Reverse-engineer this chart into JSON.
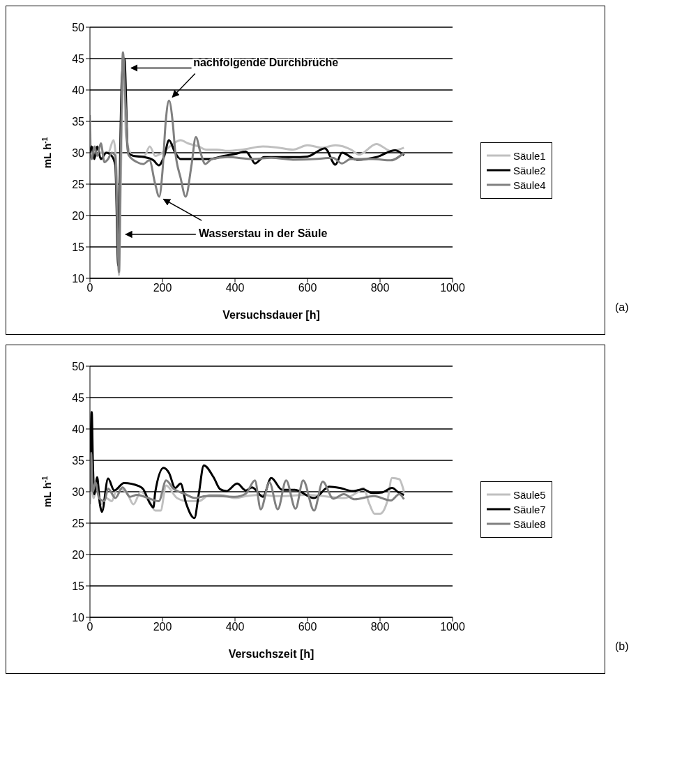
{
  "chart_data": [
    {
      "type": "line",
      "xlabel": "Versuchsdauer [h]",
      "ylabel": "mL h$^{-1}$",
      "xlim": [
        0,
        1000
      ],
      "xticks": [
        0,
        200,
        400,
        600,
        800,
        1000
      ],
      "ylim": [
        10,
        50
      ],
      "yticks": [
        10,
        15,
        20,
        25,
        30,
        35,
        40,
        45,
        50
      ],
      "grid": "y",
      "legend": "right",
      "marker": "none",
      "line_style": "solid",
      "annotations": [
        {
          "text": "nachfolgende Durchbrüche",
          "x": 218,
          "y": 38.3
        },
        {
          "text": "Wasserstau in der Säule",
          "x": 191,
          "y": 23
        },
        "(a)"
      ],
      "series": [
        {
          "name": "Säule1",
          "color": "#c0c0c0",
          "x": [
            0,
            5,
            15,
            30,
            50,
            65,
            75,
            80,
            85,
            92,
            100,
            120,
            150,
            165,
            180,
            200,
            220,
            250,
            270,
            300,
            320,
            350,
            380,
            420,
            477,
            520,
            560,
            600,
            640,
            677,
            720,
            742,
            790,
            830,
            866
          ],
          "values": [
            36,
            29,
            31,
            30,
            30,
            32,
            25,
            10.5,
            25,
            45,
            32,
            29.5,
            29.5,
            31,
            29.5,
            30,
            31,
            32,
            31.5,
            31,
            30.5,
            30.5,
            30.3,
            30.5,
            31,
            30.8,
            30.5,
            31.2,
            30.8,
            31.2,
            30.5,
            29.7,
            31.4,
            30.3,
            30.8
          ]
        },
        {
          "name": "Säule2",
          "color": "#000000",
          "x": [
            0,
            5,
            12,
            20,
            30,
            45,
            60,
            70,
            78,
            82,
            88,
            95,
            105,
            120,
            150,
            175,
            190,
            205,
            218,
            235,
            250,
            300,
            330,
            370,
            400,
            430,
            445,
            455,
            480,
            560,
            600,
            648,
            677,
            695,
            736,
            790,
            842,
            866
          ],
          "values": [
            30,
            31,
            29,
            31,
            29,
            30,
            29.5,
            28,
            12,
            25,
            42,
            45,
            30,
            29.5,
            29.3,
            28.8,
            28,
            29.5,
            32,
            30,
            29,
            29,
            29,
            29.5,
            29.8,
            30.2,
            29.1,
            28.3,
            29.3,
            29.3,
            29.4,
            30.7,
            28.1,
            30,
            28.9,
            29.3,
            30.4,
            29.6
          ]
        },
        {
          "name": "Säule4",
          "color": "#808080",
          "x": [
            0,
            5,
            12,
            20,
            30,
            40,
            50,
            60,
            70,
            75,
            80,
            85,
            91,
            98,
            106,
            130,
            147,
            164,
            180,
            191,
            200,
            209,
            218,
            228,
            235,
            250,
            264,
            280,
            292,
            305,
            318,
            336,
            380,
            450,
            500,
            560,
            620,
            670,
            695,
            719,
            780,
            830,
            866
          ],
          "values": [
            30,
            29,
            31,
            29.5,
            31.5,
            28.5,
            29,
            30,
            29.5,
            20,
            11,
            30,
            46,
            38,
            29.7,
            28.5,
            28.2,
            28.8,
            25,
            23,
            27,
            35,
            38.3,
            35,
            30.3,
            26,
            23,
            28,
            32.5,
            30,
            28.2,
            29,
            29.3,
            29,
            29.2,
            28.9,
            29,
            29.2,
            28.3,
            29,
            29,
            28.8,
            30
          ]
        }
      ]
    },
    {
      "type": "line",
      "xlabel": "Versuchszeit [h]",
      "ylabel": "mL h$^{-1}$",
      "xlim": [
        0,
        1000
      ],
      "xticks": [
        0,
        200,
        400,
        600,
        800,
        1000
      ],
      "ylim": [
        10,
        50
      ],
      "yticks": [
        10,
        15,
        20,
        25,
        30,
        35,
        40,
        45,
        50
      ],
      "grid": "y",
      "legend": "right",
      "marker": "none",
      "line_style": "solid",
      "annotations": [
        "(b)"
      ],
      "series": [
        {
          "name": "Säule5",
          "color": "#c0c0c0",
          "x": [
            0,
            5,
            10,
            20,
            30,
            45,
            60,
            75,
            100,
            120,
            140,
            160,
            180,
            195,
            210,
            240,
            270,
            300,
            330,
            360,
            400,
            430,
            470,
            520,
            600,
            660,
            700,
            740,
            754,
            771,
            785,
            800,
            820,
            833,
            853,
            866
          ],
          "values": [
            28,
            31,
            29,
            31.5,
            28,
            29,
            28.5,
            30.5,
            30,
            28,
            30,
            29,
            27,
            27,
            31,
            29,
            28.5,
            28.5,
            29.5,
            29.5,
            29,
            29.3,
            29.5,
            29.3,
            29.5,
            29.2,
            29,
            30,
            30.6,
            28,
            26.5,
            26.5,
            28.5,
            32.2,
            32,
            30
          ]
        },
        {
          "name": "Säule7",
          "color": "#000000",
          "x": [
            0,
            5,
            8,
            12,
            20,
            27,
            33,
            50,
            67,
            94,
            135,
            147,
            165,
            175,
            180,
            203,
            218,
            235,
            250,
            265,
            288,
            300,
            314,
            341,
            359,
            376,
            406,
            430,
            447,
            477,
            500,
            530,
            565,
            618,
            660,
            689,
            724,
            754,
            777,
            806,
            833,
            853,
            866
          ],
          "values": [
            30,
            42.7,
            34.8,
            29.6,
            32.3,
            28.2,
            26.8,
            32.1,
            30.2,
            31.4,
            30.9,
            30.4,
            28.2,
            27.5,
            29.9,
            33.8,
            33,
            30.6,
            31.3,
            28.2,
            25.8,
            29.6,
            34.2,
            32.3,
            30.4,
            30.1,
            31.3,
            30.2,
            30.7,
            29.2,
            32.2,
            30.3,
            30.3,
            29,
            30.8,
            30.6,
            30.1,
            30.4,
            29.8,
            29.9,
            30.6,
            29.8,
            29.5
          ]
        },
        {
          "name": "Säule8",
          "color": "#808080",
          "x": [
            0,
            3,
            8,
            15,
            25,
            40,
            50,
            70,
            90,
            110,
            130,
            160,
            190,
            210,
            230,
            260,
            290,
            320,
            350,
            400,
            430,
            455,
            471,
            495,
            518,
            541,
            567,
            588,
            618,
            642,
            671,
            700,
            730,
            783,
            830,
            853,
            866
          ],
          "values": [
            30,
            36.2,
            30,
            31.5,
            29,
            28.5,
            30.5,
            29,
            30.7,
            29.2,
            29.5,
            29,
            28.5,
            31.8,
            30.5,
            29.7,
            29,
            29.3,
            29.3,
            29.2,
            29.7,
            31.8,
            27.2,
            31.5,
            27.2,
            31.8,
            27.3,
            31.8,
            27,
            31.6,
            28.9,
            29.6,
            28.8,
            29.3,
            28.6,
            29.6,
            28.8
          ]
        }
      ]
    }
  ]
}
